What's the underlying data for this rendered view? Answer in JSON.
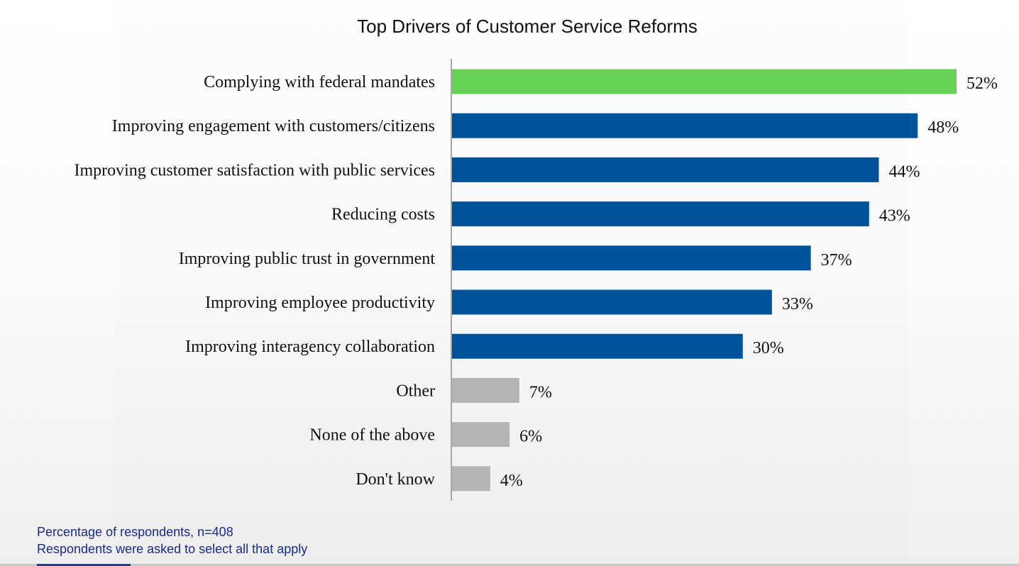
{
  "chart_data": {
    "type": "bar",
    "orientation": "horizontal",
    "title": "Top Drivers of Customer Service Reforms",
    "xlabel": "",
    "ylabel": "",
    "xlim": [
      0,
      52
    ],
    "grid": false,
    "categories": [
      "Complying with federal mandates",
      "Improving engagement with customers/citizens",
      "Improving customer satisfaction with public services",
      "Reducing costs",
      "Improving public trust in government",
      "Improving employee productivity",
      "Improving interagency collaboration",
      "Other",
      "None of the above",
      "Don't know"
    ],
    "values": [
      52,
      48,
      44,
      43,
      37,
      33,
      30,
      7,
      6,
      4
    ],
    "value_labels": [
      "52%",
      "48%",
      "44%",
      "43%",
      "37%",
      "33%",
      "30%",
      "7%",
      "6%",
      "4%"
    ],
    "bar_colors": [
      "#66d155",
      "#00529b",
      "#00529b",
      "#00529b",
      "#00529b",
      "#00529b",
      "#00529b",
      "#b4b4b4",
      "#b4b4b4",
      "#b4b4b4"
    ],
    "unit": "%"
  },
  "footnote": {
    "line1": "Percentage of respondents, n=408",
    "line2": "Respondents were asked to select all that apply"
  },
  "colors": {
    "highlight": "#66d155",
    "primary": "#00529b",
    "neutral": "#b4b4b4",
    "footnote_text": "#1a2a8a"
  }
}
